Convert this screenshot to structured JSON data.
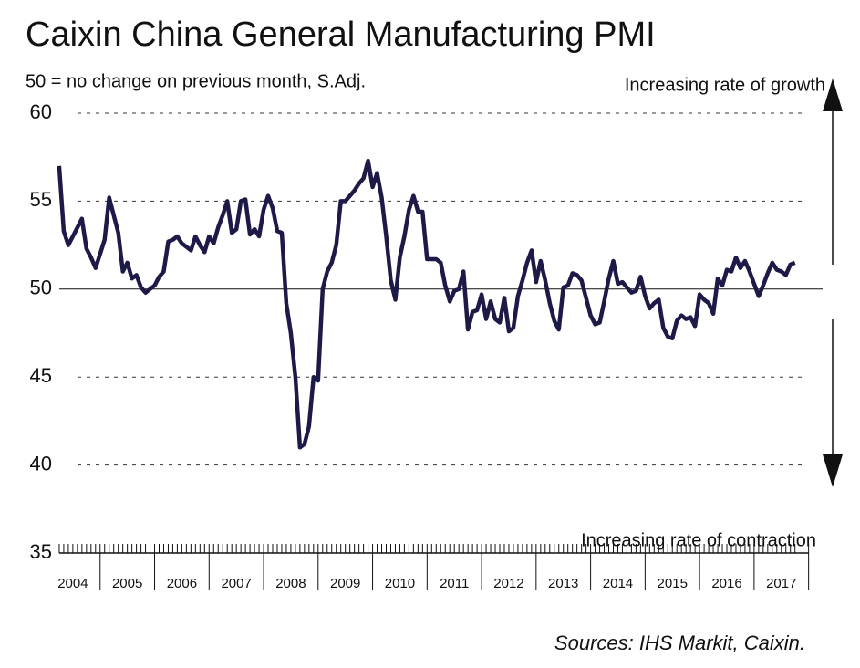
{
  "chart_data": {
    "type": "line",
    "title": "Caixin China General Manufacturing PMI",
    "subtitle": "50 = no change on previous month, S.Adj.",
    "annotations": [
      "Increasing rate of growth",
      "Increasing rate of contraction"
    ],
    "source": "Sources: IHS Markit, Caixin.",
    "categories": [
      "2004",
      null,
      null,
      null,
      null,
      null,
      null,
      null,
      null,
      "2005",
      null,
      null,
      null,
      null,
      null,
      null,
      null,
      null,
      null,
      null,
      null,
      "2006",
      null,
      null,
      null,
      null,
      null,
      null,
      null,
      null,
      null,
      null,
      null,
      "2007",
      null,
      null,
      null,
      null,
      null,
      null,
      null,
      null,
      null,
      null,
      null,
      "2008",
      null,
      null,
      null,
      null,
      null,
      null,
      null,
      null,
      null,
      null,
      null,
      "2009",
      null,
      null,
      null,
      null,
      null,
      null,
      null,
      null,
      null,
      null,
      null,
      "2010",
      null,
      null,
      null,
      null,
      null,
      null,
      null,
      null,
      null,
      null,
      null,
      "2011",
      null,
      null,
      null,
      null,
      null,
      null,
      null,
      null,
      null,
      null,
      null,
      "2012",
      null,
      null,
      null,
      null,
      null,
      null,
      null,
      null,
      null,
      null,
      null,
      "2013",
      null,
      null,
      null,
      null,
      null,
      null,
      null,
      null,
      null,
      null,
      null,
      "2014",
      null,
      null,
      null,
      null,
      null,
      null,
      null,
      null,
      null,
      null,
      null,
      "2015",
      null,
      null,
      null,
      null,
      null,
      null,
      null,
      null,
      null,
      null,
      null,
      "2016",
      null,
      null,
      null,
      null,
      null,
      null,
      null,
      null,
      null,
      null,
      null,
      "2017",
      null,
      null,
      null,
      null,
      null,
      null,
      null,
      null,
      null
    ],
    "series": [
      {
        "name": "Caixin China General Manufacturing PMI",
        "color": "#1e1a48",
        "values": [
          57,
          53.3,
          52.5,
          53,
          53.5,
          54,
          52.3,
          51.8,
          51.2,
          52,
          52.8,
          55.2,
          54.2,
          53.2,
          51,
          51.5,
          50.6,
          50.8,
          50.1,
          49.8,
          50,
          50.2,
          50.7,
          51,
          52.7,
          52.8,
          53,
          52.6,
          52.4,
          52.2,
          53,
          52.5,
          52.1,
          53,
          52.6,
          53.5,
          54.2,
          55,
          53.2,
          53.4,
          55,
          55.1,
          53.1,
          53.4,
          53,
          54.5,
          55.3,
          54.6,
          53.3,
          53.2,
          49.2,
          47.5,
          45,
          41,
          41.2,
          42.2,
          45,
          44.8,
          50,
          51,
          51.5,
          52.5,
          55,
          55,
          55.3,
          55.6,
          56,
          56.3,
          57.3,
          55.8,
          56.6,
          55.2,
          53,
          50.5,
          49.4,
          51.8,
          53,
          54.5,
          55.3,
          54.4,
          54.4,
          51.7,
          51.7,
          51.7,
          51.5,
          50.2,
          49.3,
          49.9,
          50,
          51,
          47.7,
          48.7,
          48.8,
          49.7,
          48.3,
          49.3,
          48.3,
          48.1,
          49.5,
          47.6,
          47.8,
          49.6,
          50.5,
          51.5,
          52.2,
          50.4,
          51.6,
          50.5,
          49.2,
          48.2,
          47.7,
          50.1,
          50.2,
          50.9,
          50.8,
          50.5,
          49.5,
          48.5,
          48,
          48.1,
          49.3,
          50.6,
          51.6,
          50.3,
          50.4,
          50.1,
          49.8,
          49.9,
          50.7,
          49.6,
          48.9,
          49.2,
          49.4,
          47.8,
          47.3,
          47.2,
          48.2,
          48.5,
          48.3,
          48.4,
          47.9,
          49.7,
          49.4,
          49.2,
          48.6,
          50.6,
          50.2,
          51.1,
          51,
          51.8,
          51.2,
          51.6,
          51,
          50.3,
          49.6,
          50.2,
          50.9,
          51.5,
          51.1,
          51,
          50.8,
          51.4,
          51.5
        ]
      }
    ],
    "ylim": [
      35,
      60
    ],
    "yticks": [
      35,
      40,
      45,
      50,
      55,
      60
    ],
    "grid": true,
    "reference": 50
  }
}
